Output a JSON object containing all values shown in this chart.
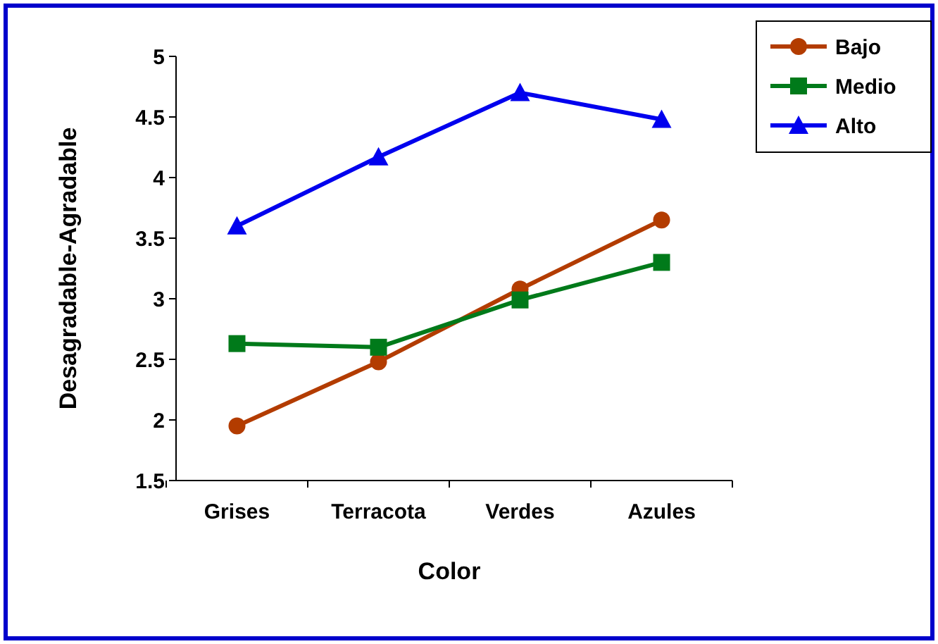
{
  "chart_data": {
    "type": "line",
    "xlabel": "Color",
    "ylabel": "Desagradable-Agradable",
    "categories": [
      "Grises",
      "Terracota",
      "Verdes",
      "Azules"
    ],
    "series": [
      {
        "name": "Bajo",
        "color": "#b33c00",
        "marker": "circle",
        "values": [
          1.95,
          2.48,
          3.08,
          3.65
        ]
      },
      {
        "name": "Medio",
        "color": "#007a1a",
        "marker": "square",
        "values": [
          2.63,
          2.6,
          2.99,
          3.3
        ]
      },
      {
        "name": "Alto",
        "color": "#0000ee",
        "marker": "triangle",
        "values": [
          3.6,
          4.17,
          4.7,
          4.48
        ]
      }
    ],
    "ylim": [
      1.5,
      5
    ],
    "yticks": [
      1.5,
      2,
      2.5,
      3,
      3.5,
      4,
      4.5,
      5
    ],
    "grid": false,
    "legend": "top right"
  }
}
